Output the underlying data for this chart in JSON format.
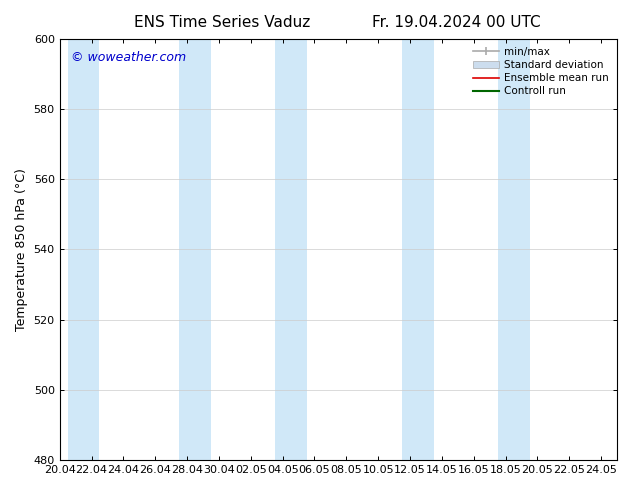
{
  "title_left": "ENS Time Series Vaduz",
  "title_right": "Fr. 19.04.2024 00 UTC",
  "ylabel": "Temperature 850 hPa (°C)",
  "watermark": "© woweather.com",
  "watermark_color": "#0000cc",
  "xlim_left": 0,
  "xlim_right": 35,
  "ylim_bottom": 480,
  "ylim_top": 600,
  "yticks": [
    480,
    500,
    520,
    540,
    560,
    580,
    600
  ],
  "xtick_labels": [
    "20.04",
    "22.04",
    "24.04",
    "26.04",
    "28.04",
    "30.04",
    "02.05",
    "04.05",
    "06.05",
    "08.05",
    "10.05",
    "12.05",
    "14.05",
    "16.05",
    "18.05",
    "20.05",
    "22.05",
    "24.05"
  ],
  "xtick_positions": [
    0,
    2,
    4,
    6,
    8,
    10,
    12,
    14,
    16,
    18,
    20,
    22,
    24,
    26,
    28,
    30,
    32,
    34
  ],
  "shade_bands": [
    {
      "x_start": 0.5,
      "x_end": 2.5
    },
    {
      "x_start": 7.5,
      "x_end": 9.5
    },
    {
      "x_start": 13.5,
      "x_end": 15.5
    },
    {
      "x_start": 21.5,
      "x_end": 23.5
    },
    {
      "x_start": 27.5,
      "x_end": 29.5
    }
  ],
  "shade_color": "#d0e8f8",
  "background_color": "#ffffff",
  "legend_entries": [
    {
      "label": "min/max",
      "color": "#aaaaaa",
      "lw": 1.2,
      "style": "errbar"
    },
    {
      "label": "Standard deviation",
      "color": "#ccddee",
      "lw": 6,
      "style": "band"
    },
    {
      "label": "Ensemble mean run",
      "color": "#dd0000",
      "lw": 1.2,
      "style": "line"
    },
    {
      "label": "Controll run",
      "color": "#006600",
      "lw": 1.5,
      "style": "line"
    }
  ],
  "grid_color": "#cccccc",
  "spine_color": "#000000",
  "tick_color": "#000000",
  "title_fontsize": 11,
  "axis_label_fontsize": 9,
  "tick_fontsize": 8,
  "watermark_fontsize": 9
}
